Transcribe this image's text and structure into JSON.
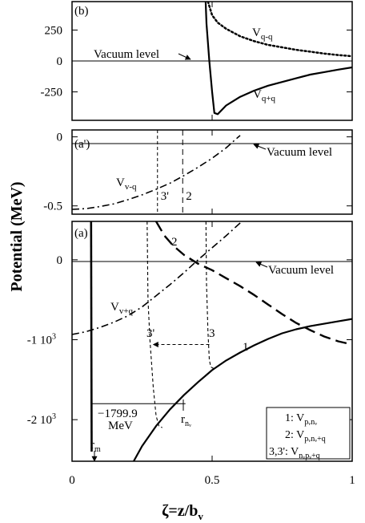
{
  "chart_data": [
    {
      "id": "b",
      "type": "line",
      "tag": "(b)",
      "xlim": [
        0,
        1
      ],
      "ylim": [
        -480,
        480
      ],
      "yticks": [
        {
          "v": 250,
          "label": "250"
        },
        {
          "v": 0,
          "label": "0"
        },
        {
          "v": -250,
          "label": "-250"
        }
      ],
      "x_tick_values": [
        0,
        0.5,
        1
      ],
      "series": [
        {
          "name": "V_{q-q}",
          "style": "dotted",
          "width": 2.5,
          "points": [
            [
              0.485,
              480
            ],
            [
              0.5,
              370
            ],
            [
              0.52,
              310
            ],
            [
              0.55,
              260
            ],
            [
              0.6,
              200
            ],
            [
              0.65,
              160
            ],
            [
              0.7,
              130
            ],
            [
              0.75,
              110
            ],
            [
              0.8,
              90
            ],
            [
              0.85,
              75
            ],
            [
              0.9,
              60
            ],
            [
              0.95,
              48
            ],
            [
              1.0,
              38
            ]
          ]
        },
        {
          "name": "V_{q+q}",
          "style": "solid",
          "width": 2.2,
          "points": [
            [
              0.477,
              480
            ],
            [
              0.48,
              300
            ],
            [
              0.49,
              0
            ],
            [
              0.5,
              -250
            ],
            [
              0.508,
              -420
            ],
            [
              0.52,
              -430
            ],
            [
              0.55,
              -360
            ],
            [
              0.6,
              -290
            ],
            [
              0.65,
              -240
            ],
            [
              0.7,
              -200
            ],
            [
              0.75,
              -170
            ],
            [
              0.8,
              -140
            ],
            [
              0.85,
              -110
            ],
            [
              0.9,
              -90
            ],
            [
              0.95,
              -70
            ],
            [
              1.0,
              -52
            ]
          ]
        }
      ],
      "reference_line": {
        "y": 0,
        "label": "Vacuum level"
      },
      "labels": {
        "vacuum": "Vacuum level",
        "v_minus_main": "V",
        "v_minus_sub": "q-q",
        "v_plus_main": "V",
        "v_plus_sub": "q+q"
      }
    },
    {
      "id": "a_prime",
      "type": "line",
      "tag": "(a')",
      "xlim": [
        0,
        1
      ],
      "ylim": [
        -0.56,
        0.05
      ],
      "yticks": [
        {
          "v": 0,
          "label": "0"
        },
        {
          "v": -0.5,
          "label": "-0.5"
        }
      ],
      "x_tick_values": [
        0,
        0.5,
        1
      ],
      "series": [
        {
          "name": "V_{v-q}",
          "style": "dashdot",
          "width": 1.6,
          "points": [
            [
              0.0,
              -0.525
            ],
            [
              0.05,
              -0.52
            ],
            [
              0.1,
              -0.505
            ],
            [
              0.15,
              -0.485
            ],
            [
              0.2,
              -0.455
            ],
            [
              0.25,
              -0.42
            ],
            [
              0.3,
              -0.38
            ],
            [
              0.35,
              -0.335
            ],
            [
              0.4,
              -0.28
            ],
            [
              0.45,
              -0.22
            ],
            [
              0.5,
              -0.155
            ],
            [
              0.55,
              -0.08
            ],
            [
              0.58,
              -0.025
            ],
            [
              0.6,
              0.01
            ]
          ]
        }
      ],
      "markers": [
        {
          "x": 0.305,
          "label": "3'",
          "style": "thin-dashed"
        },
        {
          "x": 0.395,
          "label": "2",
          "style": "dashed"
        }
      ],
      "reference_line": {
        "y": 0,
        "label": "Vacuum level"
      },
      "labels": {
        "vacuum": "Vacuum level",
        "v_main": "V",
        "v_sub": "v-q"
      }
    },
    {
      "id": "a",
      "type": "line",
      "tag": "(a)",
      "xlim": [
        0,
        1
      ],
      "ylim": [
        -2520,
        480
      ],
      "yticks": [
        {
          "v": 0,
          "label": "0",
          "kind": "plain"
        },
        {
          "v": -1000,
          "label": "-1 10",
          "exp": "3",
          "kind": "sci"
        },
        {
          "v": -2000,
          "label": "-2 10",
          "exp": "3",
          "kind": "sci"
        }
      ],
      "xticks": [
        {
          "v": 0,
          "label": "0"
        },
        {
          "v": 0.5,
          "label": "0.5"
        },
        {
          "v": 1,
          "label": "1"
        }
      ],
      "series": [
        {
          "name": "1",
          "style": "solid",
          "width": 2.2,
          "points": [
            [
              0.22,
              -2520
            ],
            [
              0.25,
              -2330
            ],
            [
              0.3,
              -2080
            ],
            [
              0.35,
              -1870
            ],
            [
              0.4,
              -1690
            ],
            [
              0.45,
              -1530
            ],
            [
              0.5,
              -1380
            ],
            [
              0.55,
              -1260
            ],
            [
              0.6,
              -1160
            ],
            [
              0.65,
              -1070
            ],
            [
              0.7,
              -990
            ],
            [
              0.75,
              -920
            ],
            [
              0.8,
              -870
            ],
            [
              0.85,
              -830
            ],
            [
              0.9,
              -800
            ],
            [
              0.95,
              -770
            ],
            [
              1.0,
              -740
            ]
          ]
        },
        {
          "name": "1-wall",
          "style": "solid",
          "width": 2.6,
          "points": [
            [
              0.068,
              480
            ],
            [
              0.07,
              -2400
            ]
          ]
        },
        {
          "name": "2",
          "style": "longdash",
          "width": 2.4,
          "points": [
            [
              0.3,
              480
            ],
            [
              0.33,
              300
            ],
            [
              0.36,
              180
            ],
            [
              0.4,
              60
            ],
            [
              0.45,
              -50
            ],
            [
              0.5,
              -130
            ],
            [
              0.55,
              -230
            ],
            [
              0.6,
              -330
            ],
            [
              0.65,
              -440
            ],
            [
              0.7,
              -560
            ],
            [
              0.75,
              -680
            ],
            [
              0.8,
              -790
            ],
            [
              0.85,
              -880
            ],
            [
              0.9,
              -960
            ],
            [
              0.95,
              -1020
            ],
            [
              1.0,
              -1060
            ]
          ]
        },
        {
          "name": "V_{v+q}",
          "style": "dashdot",
          "width": 1.6,
          "points": [
            [
              0.0,
              -935
            ],
            [
              0.05,
              -900
            ],
            [
              0.1,
              -845
            ],
            [
              0.15,
              -780
            ],
            [
              0.2,
              -700
            ],
            [
              0.25,
              -590
            ],
            [
              0.3,
              -450
            ],
            [
              0.35,
              -310
            ],
            [
              0.4,
              -160
            ],
            [
              0.45,
              0
            ],
            [
              0.5,
              150
            ],
            [
              0.55,
              300
            ],
            [
              0.6,
              460
            ],
            [
              0.605,
              480
            ]
          ]
        },
        {
          "name": "3'",
          "style": "thin-dashed",
          "width": 1.1,
          "points": [
            [
              0.268,
              480
            ],
            [
              0.271,
              -500
            ],
            [
              0.278,
              -1000
            ],
            [
              0.29,
              -1600
            ],
            [
              0.3,
              -1950
            ],
            [
              0.31,
              -2080
            ],
            [
              0.322,
              -2100
            ]
          ]
        },
        {
          "name": "3",
          "style": "thin-dashed",
          "width": 1.1,
          "points": [
            [
              0.478,
              480
            ],
            [
              0.48,
              -300
            ],
            [
              0.485,
              -900
            ],
            [
              0.49,
              -1250
            ],
            [
              0.495,
              -1340
            ],
            [
              0.505,
              -1360
            ]
          ]
        },
        {
          "name": "arrow-3-to-3prime",
          "style": "thin-dashed",
          "width": 1,
          "points": [
            [
              0.49,
              -1060
            ],
            [
              0.29,
              -1060
            ]
          ]
        }
      ],
      "reference_line": {
        "y": 0,
        "label": "Vacuum level"
      },
      "bracket": {
        "y": -1799.9,
        "x_end": 0.405
      },
      "legend": [
        {
          "key": "1",
          "label": "1: V",
          "sub": "pᵥnᵥ"
        },
        {
          "key": "2",
          "label": "2: V",
          "sub": "pᵥnᵥ+q"
        },
        {
          "key": "3",
          "label": "3,3': V",
          "sub": "nᵥpᵥ+q"
        }
      ],
      "labels": {
        "vacuum": "Vacuum level",
        "curve2": "2",
        "curve1": "1",
        "curve3": "3",
        "curve3p": "3'",
        "vplus_main": "V",
        "vplus_sub": "v+q",
        "energy1": "−1799.9",
        "energy2": "MeV",
        "rn_main": "r",
        "rn_sub": "nᵥ",
        "rm_main": "r",
        "rm_sub": "m"
      }
    }
  ],
  "axes": {
    "ylabel": "Potential (MeV)",
    "xlabel_main": "ζ=z/b",
    "xlabel_sub": "v"
  }
}
